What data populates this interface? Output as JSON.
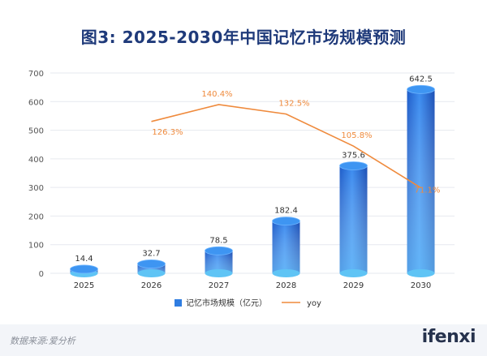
{
  "title": "图3: 2025-2030年中国记忆市场规模预测",
  "source": "数据来源:爱分析",
  "logo": "ifenxi",
  "chart_data": {
    "type": "bar",
    "categories": [
      "2025",
      "2026",
      "2027",
      "2028",
      "2029",
      "2030"
    ],
    "series": [
      {
        "name": "记忆市场规模（亿元）",
        "type": "bar",
        "axis": "left",
        "values": [
          14.4,
          32.7,
          78.5,
          182.4,
          375.6,
          642.5
        ],
        "labels": [
          "14.4",
          "32.7",
          "78.5",
          "182.4",
          "375.6",
          "642.5"
        ]
      },
      {
        "name": "yoy",
        "type": "line",
        "axis": "right",
        "values": [
          null,
          126.3,
          140.4,
          132.5,
          105.8,
          71.1
        ],
        "labels": [
          "",
          "126.3%",
          "140.4%",
          "132.5%",
          "105.8%",
          "71.1%"
        ]
      }
    ],
    "yticks": [
      "0",
      "100",
      "200",
      "300",
      "400",
      "500",
      "600",
      "700"
    ],
    "ylim": [
      0,
      700
    ],
    "grid": true,
    "legend_position": "bottom",
    "colors": {
      "bar": "#2f7de1",
      "line": "#ef8a3c",
      "grid": "#e6e9ef"
    }
  }
}
